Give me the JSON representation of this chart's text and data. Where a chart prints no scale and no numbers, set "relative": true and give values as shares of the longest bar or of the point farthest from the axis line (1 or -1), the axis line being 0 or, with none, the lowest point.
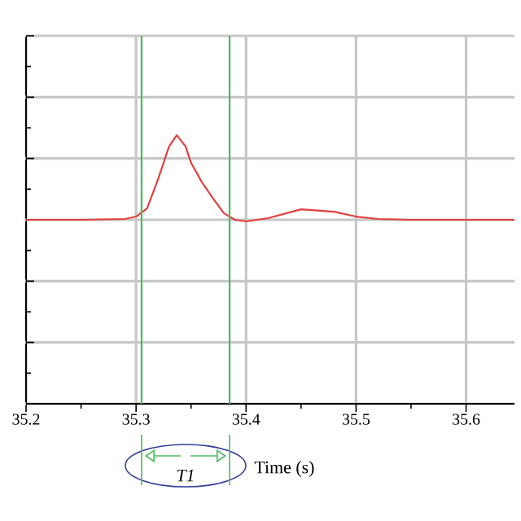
{
  "chart_data": {
    "type": "line",
    "xlabel": "Time (s)",
    "relative": true,
    "x": [
      35.2,
      35.25,
      35.29,
      35.3,
      35.31,
      35.32,
      35.33,
      35.337,
      35.345,
      35.35,
      35.36,
      35.37,
      35.38,
      35.39,
      35.4,
      35.42,
      35.45,
      35.48,
      35.5,
      35.52,
      35.55,
      35.644
    ],
    "series": [
      {
        "color": "#e0403f",
        "values": [
          0.685,
          0.685,
          0.688,
          0.697,
          0.727,
          0.836,
          0.958,
          1.0,
          0.958,
          0.897,
          0.824,
          0.764,
          0.709,
          0.685,
          0.679,
          0.691,
          0.724,
          0.715,
          0.697,
          0.688,
          0.685,
          0.685
        ]
      }
    ],
    "xlim": [
      35.2,
      35.644
    ],
    "xticks": [
      35.2,
      35.3,
      35.4,
      35.5,
      35.6
    ],
    "ref_lines": [
      {
        "axis": "x",
        "value": 35.305,
        "color": "#4cba5a"
      },
      {
        "axis": "x",
        "value": 35.385,
        "color": "#4cba5a"
      }
    ],
    "annotations": [
      "T1"
    ],
    "grid": true,
    "tick_labels": "x",
    "marker": "none",
    "line_style": "solid"
  }
}
